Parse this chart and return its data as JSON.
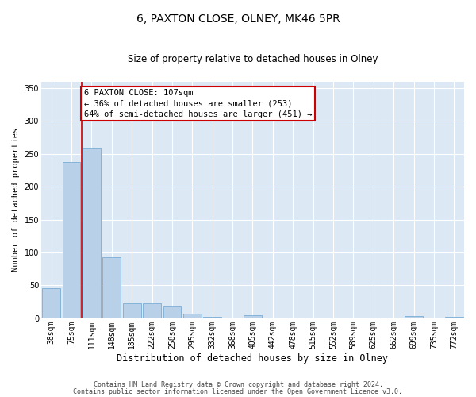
{
  "title": "6, PAXTON CLOSE, OLNEY, MK46 5PR",
  "subtitle": "Size of property relative to detached houses in Olney",
  "xlabel": "Distribution of detached houses by size in Olney",
  "ylabel": "Number of detached properties",
  "categories": [
    "38sqm",
    "75sqm",
    "111sqm",
    "148sqm",
    "185sqm",
    "222sqm",
    "258sqm",
    "295sqm",
    "332sqm",
    "368sqm",
    "405sqm",
    "442sqm",
    "478sqm",
    "515sqm",
    "552sqm",
    "589sqm",
    "625sqm",
    "662sqm",
    "699sqm",
    "735sqm",
    "772sqm"
  ],
  "values": [
    46,
    237,
    258,
    93,
    23,
    23,
    18,
    7,
    2,
    0,
    5,
    0,
    0,
    0,
    0,
    0,
    0,
    0,
    4,
    0,
    2
  ],
  "bar_color": "#b8d0e8",
  "bar_edge_color": "#7aadd4",
  "red_line_x": 1.5,
  "annotation_text": "6 PAXTON CLOSE: 107sqm\n← 36% of detached houses are smaller (253)\n64% of semi-detached houses are larger (451) →",
  "annotation_box_color": "white",
  "annotation_box_edge_color": "#cc0000",
  "red_line_color": "#cc0000",
  "background_color": "#dce9f5",
  "footer_line1": "Contains HM Land Registry data © Crown copyright and database right 2024.",
  "footer_line2": "Contains public sector information licensed under the Open Government Licence v3.0.",
  "ylim": [
    0,
    360
  ],
  "yticks": [
    0,
    50,
    100,
    150,
    200,
    250,
    300,
    350
  ],
  "title_fontsize": 10,
  "subtitle_fontsize": 8.5,
  "xlabel_fontsize": 8.5,
  "ylabel_fontsize": 7.5,
  "tick_fontsize": 7,
  "footer_fontsize": 6,
  "annotation_fontsize": 7.5
}
